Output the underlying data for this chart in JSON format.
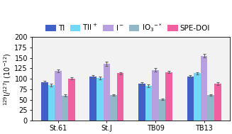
{
  "categories": [
    "St.61",
    "St.J",
    "TB09",
    "TB13"
  ],
  "series": {
    "TI": {
      "values": [
        92,
        105,
        88,
        106
      ],
      "errors": [
        3,
        3,
        3,
        3
      ],
      "color": "#4060c8"
    },
    "TII+": {
      "values": [
        85,
        102,
        83,
        113
      ],
      "errors": [
        4,
        4,
        3,
        3
      ],
      "color": "#70d8f8"
    },
    "I-": {
      "values": [
        119,
        136,
        121,
        155
      ],
      "errors": [
        4,
        5,
        4,
        4
      ],
      "color": "#b8a0e0"
    },
    "IO3-*": {
      "values": [
        60,
        61,
        51,
        61
      ],
      "errors": [
        2,
        2,
        2,
        2
      ],
      "color": "#90b8c8"
    },
    "SPE-DOI": {
      "values": [
        101,
        113,
        116,
        88
      ],
      "errors": [
        3,
        3,
        3,
        3
      ],
      "color": "#f060a0"
    }
  },
  "legend_labels_math": [
    "TI",
    "TII$^+$",
    "I$^-$",
    "IO$_3$$^{-*}$",
    "SPE-DOI"
  ],
  "ylabel": "$^{129}$I/$^{127}$I (10$^{-12}$)",
  "ylim": [
    0,
    200
  ],
  "yticks": [
    0,
    25,
    50,
    75,
    100,
    125,
    150,
    175,
    200
  ],
  "fig_background": "#ffffff",
  "ax_background": "#f2f2f2",
  "bar_width": 0.14,
  "axis_fontsize": 7,
  "tick_fontsize": 7,
  "legend_fontsize": 7.5
}
